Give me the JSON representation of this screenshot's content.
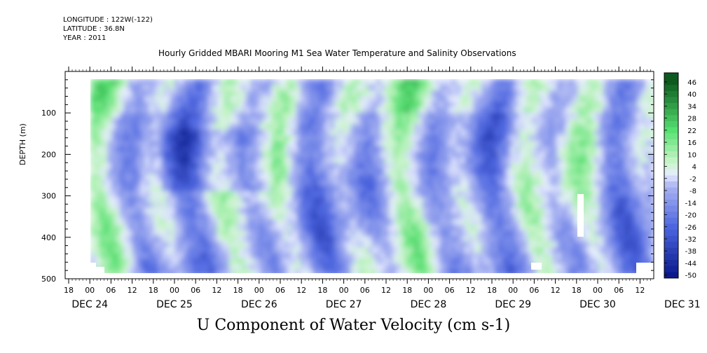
{
  "meta": {
    "longitude": "LONGITUDE : 122W(-122)",
    "latitude": "LATITUDE : 36.8N",
    "year": "YEAR : 2011"
  },
  "chart_data": {
    "type": "heatmap",
    "title": "Hourly Gridded MBARI Mooring M1 Sea Water Temperature and Salinity Observations",
    "xlabel": "U Component of Water Velocity (cm s-1)",
    "ylabel": "DEPTH (m)",
    "ylim": [
      500,
      0
    ],
    "y_ticks": [
      100,
      200,
      300,
      400,
      500
    ],
    "x_hour_ticks": [
      "18",
      "00",
      "06",
      "12",
      "18",
      "00",
      "06",
      "12",
      "18",
      "00",
      "06",
      "12",
      "18",
      "00",
      "06",
      "12",
      "18",
      "00",
      "06",
      "12",
      "18",
      "00",
      "06",
      "12",
      "18",
      "00",
      "06",
      "12"
    ],
    "x_date_labels": [
      "DEC 24",
      "DEC 25",
      "DEC 26",
      "DEC 27",
      "DEC 28",
      "DEC 29",
      "DEC 30",
      "DEC 31"
    ],
    "colorbar_ticks": [
      46,
      40,
      34,
      28,
      22,
      16,
      10,
      4,
      -2,
      -8,
      -14,
      -20,
      -26,
      -32,
      -38,
      -44,
      -50
    ],
    "colors": {
      "neg_strong": "#0a1a8c",
      "neg_mid": "#4d66e0",
      "neg_light": "#aab4f2",
      "zero": "#e6ecff",
      "pos_light": "#c8f5c8",
      "pos_mid": "#55e070",
      "pos_strong": "#0c5a1e"
    }
  }
}
